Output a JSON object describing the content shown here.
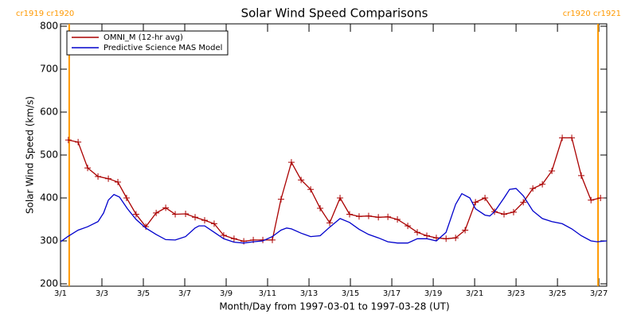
{
  "chart_data": {
    "type": "line",
    "title": "Solar Wind Speed Comparisons",
    "xlabel": "Month/Day from 1997-03-01 to 1997-03-28 (UT)",
    "ylabel": "Solar Wind Speed (km/s)",
    "xlim": [
      0,
      26.38
    ],
    "xticks": [
      {
        "value": 0,
        "label": "3/1"
      },
      {
        "value": 2,
        "label": "3/3"
      },
      {
        "value": 4,
        "label": "3/5"
      },
      {
        "value": 6,
        "label": "3/7"
      },
      {
        "value": 8,
        "label": "3/9"
      },
      {
        "value": 10,
        "label": "3/11"
      },
      {
        "value": 12,
        "label": "3/13"
      },
      {
        "value": 14,
        "label": "3/15"
      },
      {
        "value": 16,
        "label": "3/17"
      },
      {
        "value": 18,
        "label": "3/19"
      },
      {
        "value": 20,
        "label": "3/21"
      },
      {
        "value": 22,
        "label": "3/23"
      },
      {
        "value": 24,
        "label": "3/25"
      },
      {
        "value": 26,
        "label": "3/27"
      }
    ],
    "ylim": [
      200,
      800
    ],
    "yticks": [
      200,
      300,
      400,
      500,
      600,
      700,
      800
    ],
    "legend": "top-left",
    "vlines": [
      {
        "x": 0.42,
        "label": "cr1919 cr1920",
        "color": "#ff9900"
      },
      {
        "x": 25.96,
        "label": "cr1920 cr1921",
        "color": "#ff9900"
      }
    ],
    "series": [
      {
        "name": "OMNI_M (12-hr avg)",
        "color": "#aa0000",
        "marker": "plus",
        "x": [
          0.38,
          0.85,
          1.31,
          1.81,
          2.31,
          2.77,
          3.19,
          3.65,
          4.12,
          4.62,
          5.08,
          5.54,
          6.04,
          6.5,
          6.96,
          7.42,
          7.88,
          8.38,
          8.85,
          9.31,
          9.77,
          10.23,
          10.65,
          11.15,
          11.62,
          12.08,
          12.54,
          13,
          13.5,
          13.96,
          14.42,
          14.88,
          15.35,
          15.81,
          16.27,
          16.77,
          17.23,
          17.69,
          18.15,
          18.62,
          19.08,
          19.54,
          20.04,
          20.5,
          20.96,
          21.42,
          21.88,
          22.35,
          22.81,
          23.27,
          23.73,
          24.23,
          24.69,
          25.15,
          25.62,
          26.08
        ],
        "values": [
          535,
          530,
          470,
          450,
          445,
          437,
          400,
          362,
          333,
          365,
          377,
          362,
          363,
          355,
          348,
          340,
          313,
          305,
          299,
          302,
          302,
          302,
          397,
          483,
          442,
          420,
          376,
          342,
          400,
          362,
          357,
          358,
          355,
          356,
          350,
          335,
          320,
          312,
          307,
          305,
          307,
          325,
          390,
          400,
          368,
          362,
          367,
          390,
          422,
          432,
          463,
          540,
          540,
          452,
          395,
          400
        ]
      },
      {
        "name": "Predictive Science MAS Model",
        "color": "#0000cc",
        "marker": "none",
        "x": [
          0,
          0.35,
          0.85,
          1.31,
          1.81,
          2.08,
          2.31,
          2.58,
          2.85,
          3.23,
          3.65,
          4.12,
          4.62,
          5.08,
          5.54,
          6.04,
          6.5,
          6.69,
          6.96,
          7.42,
          7.88,
          8.38,
          8.85,
          9.31,
          9.77,
          10.23,
          10.65,
          10.92,
          11.15,
          11.62,
          12.08,
          12.54,
          13,
          13.5,
          13.96,
          14.42,
          14.88,
          15.35,
          15.81,
          16.27,
          16.77,
          17.23,
          17.69,
          18.15,
          18.62,
          19.08,
          19.38,
          19.77,
          20.04,
          20.5,
          20.73,
          20.96,
          21.42,
          21.69,
          22,
          22.35,
          22.81,
          23.27,
          23.73,
          24.23,
          24.69,
          25.15,
          25.62,
          25.92,
          26.38
        ],
        "values": [
          298,
          310,
          325,
          333,
          345,
          365,
          395,
          408,
          402,
          375,
          350,
          330,
          315,
          303,
          302,
          310,
          330,
          335,
          335,
          320,
          305,
          297,
          295,
          298,
          300,
          310,
          325,
          330,
          328,
          318,
          310,
          312,
          332,
          352,
          343,
          327,
          315,
          307,
          298,
          295,
          295,
          305,
          305,
          300,
          320,
          385,
          410,
          400,
          375,
          360,
          358,
          368,
          400,
          420,
          422,
          405,
          370,
          352,
          345,
          340,
          328,
          312,
          300,
          298,
          300
        ]
      }
    ]
  }
}
